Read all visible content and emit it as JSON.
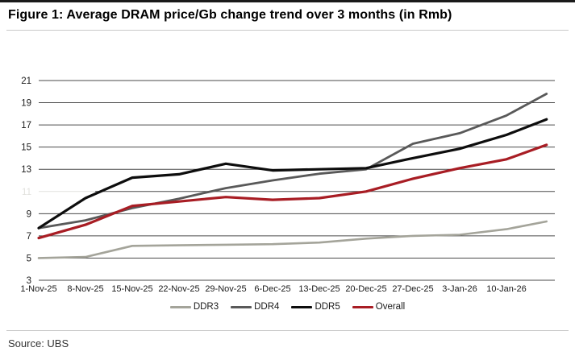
{
  "figure": {
    "title": "Figure 1: Average DRAM price/Gb change trend over 3 months (in Rmb)",
    "source": "Source: UBS"
  },
  "chart_data": {
    "type": "line",
    "title": "Figure 1: Average DRAM price/Gb change trend over 3 months (in Rmb)",
    "xlabel": "",
    "ylabel": "",
    "x_axis": {
      "tick_labels": [
        "1-Nov-25",
        "8-Nov-25",
        "15-Nov-25",
        "22-Nov-25",
        "29-Nov-25",
        "6-Dec-25",
        "13-Dec-25",
        "20-Dec-25",
        "27-Dec-25",
        "3-Jan-26",
        "10-Jan-26"
      ],
      "tick_day_offsets": [
        0,
        7,
        14,
        21,
        28,
        35,
        42,
        49,
        56,
        63,
        70
      ]
    },
    "y_axis": {
      "tick_values": [
        3,
        5,
        7,
        9,
        11,
        13,
        15,
        17,
        19,
        21
      ],
      "range": [
        3,
        21
      ],
      "obscured_tick": 11,
      "gridline_color": "#4a4a4a",
      "obscured_color": "#e2e2de",
      "label_color": "#1a1a1a"
    },
    "grid": "horizontal",
    "legend_position": "bottom-center",
    "x_point_dates": [
      "1-Nov-25",
      "8-Nov-25",
      "15-Nov-25",
      "22-Nov-25",
      "29-Nov-25",
      "6-Dec-25",
      "13-Dec-25",
      "20-Dec-25",
      "27-Dec-25",
      "3-Jan-26",
      "10-Jan-26",
      "16-Jan-26"
    ],
    "x_day_offsets": [
      0,
      7,
      14,
      21,
      28,
      35,
      42,
      49,
      56,
      63,
      70,
      76
    ],
    "series": [
      {
        "name": "DDR3",
        "color": "#a4a49a",
        "width": 2.6,
        "values": [
          5.0,
          5.1,
          6.1,
          6.15,
          6.2,
          6.25,
          6.4,
          6.75,
          7.0,
          7.1,
          7.6,
          8.3
        ]
      },
      {
        "name": "DDR4",
        "color": "#595959",
        "width": 2.8,
        "values": [
          7.7,
          8.4,
          9.5,
          10.35,
          11.3,
          12.0,
          12.6,
          13.0,
          15.3,
          16.25,
          17.85,
          19.8
        ]
      },
      {
        "name": "DDR5",
        "color": "#0d0d0d",
        "width": 3.2,
        "values": [
          7.7,
          10.4,
          12.25,
          12.55,
          13.5,
          12.9,
          13.0,
          13.1,
          14.0,
          14.85,
          16.1,
          17.5
        ]
      },
      {
        "name": "Overall",
        "color": "#a81d24",
        "width": 3.2,
        "values": [
          6.8,
          8.0,
          9.7,
          10.1,
          10.5,
          10.25,
          10.4,
          11.0,
          12.15,
          13.1,
          13.9,
          15.2
        ]
      }
    ]
  }
}
